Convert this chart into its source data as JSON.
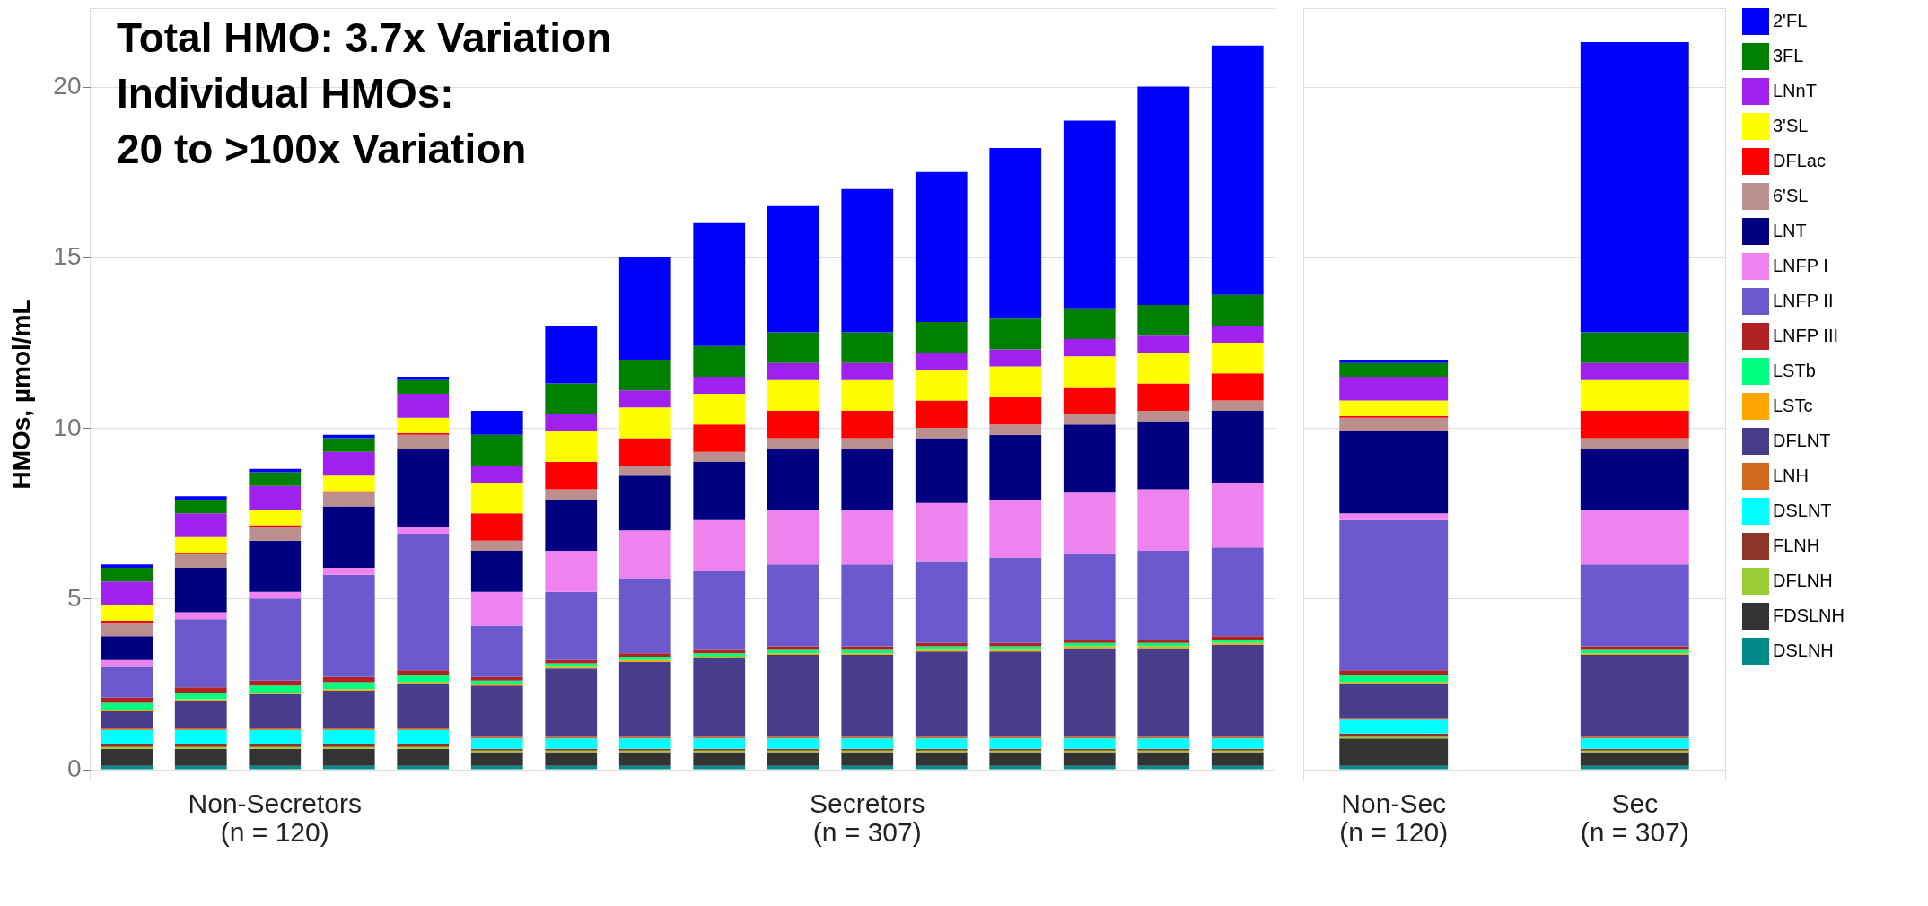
{
  "chart_data": [
    {
      "type": "bar",
      "stacked": true,
      "ylabel": "HMOs, µmol/mL",
      "ylim": [
        -0.3,
        22.3
      ],
      "yticks": [
        0,
        5,
        10,
        15,
        20
      ],
      "grid": "y",
      "legend": "right",
      "categories": [
        null,
        null,
        "Non-Secretors\n(n = 120)",
        null,
        null,
        null,
        null,
        null,
        null,
        null,
        "Secretors\n(n = 307)",
        null,
        null,
        null,
        null,
        null
      ],
      "annotations": [
        "Total HMO: 3.7x Variation",
        "Individual HMOs:",
        "20 to >100x Variation"
      ],
      "series": [
        {
          "name": "DSLNH",
          "color": "#008b8b",
          "values": [
            0.1,
            0.1,
            0.1,
            0.1,
            0.1,
            0.1,
            0.1,
            0.1,
            0.1,
            0.1,
            0.1,
            0.1,
            0.1,
            0.1,
            0.1,
            0.1
          ]
        },
        {
          "name": "FDSLNH",
          "color": "#333333",
          "values": [
            0.5,
            0.5,
            0.5,
            0.5,
            0.5,
            0.4,
            0.4,
            0.4,
            0.4,
            0.4,
            0.4,
            0.4,
            0.4,
            0.4,
            0.4,
            0.4
          ]
        },
        {
          "name": "DFLNH",
          "color": "#9acd32",
          "values": [
            0.05,
            0.05,
            0.05,
            0.05,
            0.05,
            0.05,
            0.05,
            0.05,
            0.05,
            0.05,
            0.05,
            0.05,
            0.05,
            0.05,
            0.05,
            0.05
          ]
        },
        {
          "name": "FLNH",
          "color": "#8b3626",
          "values": [
            0.1,
            0.1,
            0.1,
            0.1,
            0.1,
            0.05,
            0.05,
            0.05,
            0.05,
            0.05,
            0.05,
            0.05,
            0.05,
            0.05,
            0.05,
            0.05
          ]
        },
        {
          "name": "DSLNT",
          "color": "#00ffff",
          "values": [
            0.4,
            0.4,
            0.4,
            0.4,
            0.4,
            0.3,
            0.3,
            0.3,
            0.3,
            0.3,
            0.3,
            0.3,
            0.3,
            0.3,
            0.3,
            0.3
          ]
        },
        {
          "name": "LNH",
          "color": "#d2691e",
          "values": [
            0.05,
            0.05,
            0.05,
            0.05,
            0.05,
            0.05,
            0.05,
            0.05,
            0.05,
            0.05,
            0.05,
            0.05,
            0.05,
            0.05,
            0.05,
            0.05
          ]
        },
        {
          "name": "DFLNT",
          "color": "#483d8b",
          "values": [
            0.5,
            0.8,
            1.0,
            1.1,
            1.3,
            1.5,
            2.0,
            2.2,
            2.3,
            2.4,
            2.4,
            2.5,
            2.5,
            2.6,
            2.6,
            2.7
          ]
        },
        {
          "name": "LSTc",
          "color": "#ffa500",
          "values": [
            0.05,
            0.05,
            0.05,
            0.05,
            0.05,
            0.05,
            0.05,
            0.05,
            0.05,
            0.05,
            0.05,
            0.05,
            0.05,
            0.05,
            0.05,
            0.05
          ]
        },
        {
          "name": "LSTb",
          "color": "#00ff7f",
          "values": [
            0.2,
            0.2,
            0.2,
            0.2,
            0.2,
            0.1,
            0.1,
            0.1,
            0.1,
            0.1,
            0.1,
            0.1,
            0.1,
            0.1,
            0.1,
            0.1
          ]
        },
        {
          "name": "LNFP III",
          "color": "#b22222",
          "values": [
            0.15,
            0.15,
            0.15,
            0.15,
            0.15,
            0.1,
            0.1,
            0.1,
            0.1,
            0.1,
            0.1,
            0.1,
            0.1,
            0.1,
            0.1,
            0.1
          ]
        },
        {
          "name": "LNFP II",
          "color": "#6a5acd",
          "values": [
            0.9,
            2.0,
            2.4,
            3.0,
            4.0,
            1.5,
            2.0,
            2.2,
            2.3,
            2.4,
            2.4,
            2.4,
            2.5,
            2.5,
            2.6,
            2.6
          ]
        },
        {
          "name": "LNFP I",
          "color": "#ee82ee",
          "values": [
            0.2,
            0.2,
            0.2,
            0.2,
            0.2,
            1.0,
            1.2,
            1.4,
            1.5,
            1.6,
            1.6,
            1.7,
            1.7,
            1.8,
            1.8,
            1.9
          ]
        },
        {
          "name": "LNT",
          "color": "#000080",
          "values": [
            0.7,
            1.3,
            1.5,
            1.8,
            2.3,
            1.2,
            1.5,
            1.6,
            1.7,
            1.8,
            1.8,
            1.9,
            1.9,
            2.0,
            2.0,
            2.1
          ]
        },
        {
          "name": "6'SL",
          "color": "#bc8f8f",
          "values": [
            0.4,
            0.4,
            0.4,
            0.4,
            0.4,
            0.3,
            0.3,
            0.3,
            0.3,
            0.3,
            0.3,
            0.3,
            0.3,
            0.3,
            0.3,
            0.3
          ]
        },
        {
          "name": "DFLac",
          "color": "#ff0000",
          "values": [
            0.05,
            0.05,
            0.05,
            0.05,
            0.05,
            0.8,
            0.8,
            0.8,
            0.8,
            0.8,
            0.8,
            0.8,
            0.8,
            0.8,
            0.8,
            0.8
          ]
        },
        {
          "name": "3'SL",
          "color": "#ffff00",
          "values": [
            0.45,
            0.45,
            0.45,
            0.45,
            0.45,
            0.9,
            0.9,
            0.9,
            0.9,
            0.9,
            0.9,
            0.9,
            0.9,
            0.9,
            0.9,
            0.9
          ]
        },
        {
          "name": "LNnT",
          "color": "#a020f0",
          "values": [
            0.7,
            0.7,
            0.7,
            0.7,
            0.7,
            0.5,
            0.5,
            0.5,
            0.5,
            0.5,
            0.5,
            0.5,
            0.5,
            0.5,
            0.5,
            0.5
          ]
        },
        {
          "name": "3FL",
          "color": "#008000",
          "values": [
            0.4,
            0.4,
            0.4,
            0.4,
            0.4,
            0.9,
            0.9,
            0.9,
            0.9,
            0.9,
            0.9,
            0.9,
            0.9,
            0.9,
            0.9,
            0.9
          ]
        },
        {
          "name": "2'FL",
          "color": "#0000ff",
          "values": [
            0.1,
            0.1,
            0.1,
            0.1,
            0.1,
            0.7,
            1.7,
            3.0,
            3.6,
            3.7,
            4.2,
            4.4,
            5.0,
            5.5,
            6.4,
            7.3
          ]
        }
      ]
    },
    {
      "type": "bar",
      "stacked": true,
      "ylim": [
        -0.3,
        22.3
      ],
      "yticks": [
        0,
        5,
        10,
        15,
        20
      ],
      "grid": "y",
      "legend": "right",
      "tick_labels": "x",
      "categories": [
        "Non-Sec\n(n = 120)",
        "Sec\n(n = 307)"
      ],
      "series": [
        {
          "name": "DSLNH",
          "color": "#008b8b",
          "values": [
            0.1,
            0.1
          ]
        },
        {
          "name": "FDSLNH",
          "color": "#333333",
          "values": [
            0.8,
            0.4
          ]
        },
        {
          "name": "DFLNH",
          "color": "#9acd32",
          "values": [
            0.05,
            0.05
          ]
        },
        {
          "name": "FLNH",
          "color": "#8b3626",
          "values": [
            0.1,
            0.05
          ]
        },
        {
          "name": "DSLNT",
          "color": "#00ffff",
          "values": [
            0.4,
            0.3
          ]
        },
        {
          "name": "LNH",
          "color": "#d2691e",
          "values": [
            0.05,
            0.05
          ]
        },
        {
          "name": "DFLNT",
          "color": "#483d8b",
          "values": [
            1.0,
            2.4
          ]
        },
        {
          "name": "LSTc",
          "color": "#ffa500",
          "values": [
            0.05,
            0.05
          ]
        },
        {
          "name": "LSTb",
          "color": "#00ff7f",
          "values": [
            0.2,
            0.1
          ]
        },
        {
          "name": "LNFP III",
          "color": "#b22222",
          "values": [
            0.15,
            0.1
          ]
        },
        {
          "name": "LNFP II",
          "color": "#6a5acd",
          "values": [
            4.4,
            2.4
          ]
        },
        {
          "name": "LNFP I",
          "color": "#ee82ee",
          "values": [
            0.2,
            1.6
          ]
        },
        {
          "name": "LNT",
          "color": "#000080",
          "values": [
            2.4,
            1.8
          ]
        },
        {
          "name": "6'SL",
          "color": "#bc8f8f",
          "values": [
            0.4,
            0.3
          ]
        },
        {
          "name": "DFLac",
          "color": "#ff0000",
          "values": [
            0.05,
            0.8
          ]
        },
        {
          "name": "3'SL",
          "color": "#ffff00",
          "values": [
            0.45,
            0.9
          ]
        },
        {
          "name": "LNnT",
          "color": "#a020f0",
          "values": [
            0.7,
            0.5
          ]
        },
        {
          "name": "3FL",
          "color": "#008000",
          "values": [
            0.4,
            0.9
          ]
        },
        {
          "name": "2'FL",
          "color": "#0000ff",
          "values": [
            0.1,
            8.5
          ]
        }
      ]
    }
  ]
}
